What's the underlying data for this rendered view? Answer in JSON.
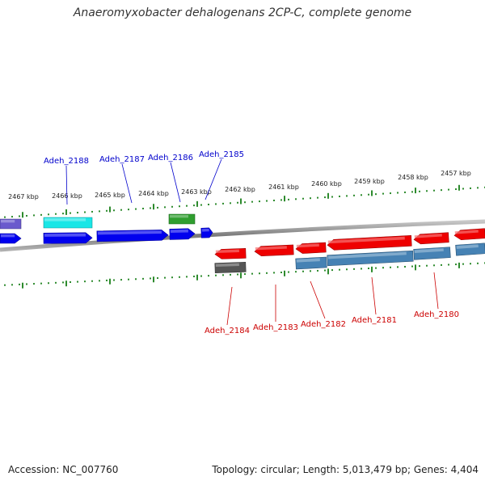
{
  "title": "Anaeromyxobacter dehalogenans 2CP-C, complete genome",
  "footer": {
    "accession": "Accession: NC_007760",
    "summary": "Topology: circular; Length: 5,013,479 bp; Genes: 4,404"
  },
  "colors": {
    "background": "#ffffff",
    "backbone": "#8a8a8a",
    "tick_track": "#2e8b2e",
    "forward_label": "#0000cc",
    "reverse_label": "#cc0000",
    "forward_gene": "#0000ee",
    "reverse_gene": "#ee0000",
    "cyan_gene": "#19e6e6",
    "purple_gene": "#6a5acd",
    "green_gene": "#2f9e2f",
    "steelblue_gene": "#4682b4",
    "gray_gene": "#555555"
  },
  "scale_labels": [
    "2467 kbp",
    "2466 kbp",
    "2465 kbp",
    "2464 kbp",
    "2463 kbp",
    "2462 kbp",
    "2461 kbp",
    "2460 kbp",
    "2459 kbp",
    "2458 kbp",
    "2457 kbp"
  ],
  "gene_labels": {
    "forward": [
      "Adeh_2188",
      "Adeh_2187",
      "Adeh_2186",
      "Adeh_2185"
    ],
    "reverse": [
      "Adeh_2184",
      "Adeh_2183",
      "Adeh_2182",
      "Adeh_2181",
      "Adeh_2180"
    ]
  }
}
